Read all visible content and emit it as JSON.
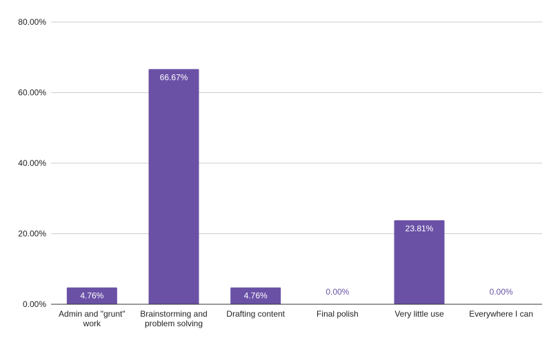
{
  "chart_data": {
    "type": "bar",
    "title": "",
    "xlabel": "",
    "ylabel": "",
    "ylim": [
      0,
      80
    ],
    "yticks": [
      "0.00%",
      "20.00%",
      "40.00%",
      "60.00%",
      "80.00%"
    ],
    "ytick_values": [
      0,
      20,
      40,
      60,
      80
    ],
    "grid": true,
    "legend": "none",
    "categories": [
      [
        "Admin and \"grunt\"",
        "work"
      ],
      [
        "Brainstorming and",
        "problem solving"
      ],
      [
        "Drafting content"
      ],
      [
        "Final polish"
      ],
      [
        "Very little use"
      ],
      [
        "Everywhere I can"
      ]
    ],
    "values": [
      4.76,
      66.67,
      4.76,
      0.0,
      23.81,
      0.0
    ],
    "value_labels": [
      "4.76%",
      "66.67%",
      "4.76%",
      "0.00%",
      "23.81%",
      "0.00%"
    ],
    "colors": {
      "bar": "#6a51a6",
      "label_inside": "#ffffff",
      "label_outside": "#6a51a6",
      "grid": "#cccccc",
      "axis": "#333333",
      "tick_text": "#222222"
    }
  }
}
